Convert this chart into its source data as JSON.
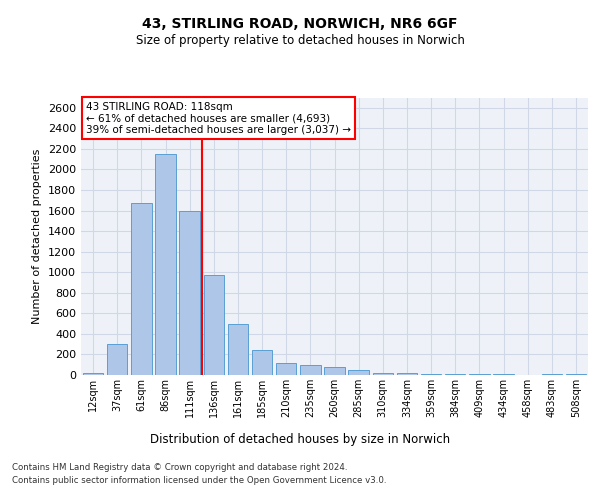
{
  "title_line1": "43, STIRLING ROAD, NORWICH, NR6 6GF",
  "title_line2": "Size of property relative to detached houses in Norwich",
  "xlabel": "Distribution of detached houses by size in Norwich",
  "ylabel": "Number of detached properties",
  "categories": [
    "12sqm",
    "37sqm",
    "61sqm",
    "86sqm",
    "111sqm",
    "136sqm",
    "161sqm",
    "185sqm",
    "210sqm",
    "235sqm",
    "260sqm",
    "285sqm",
    "310sqm",
    "334sqm",
    "359sqm",
    "384sqm",
    "409sqm",
    "434sqm",
    "458sqm",
    "483sqm",
    "508sqm"
  ],
  "values": [
    20,
    300,
    1670,
    2150,
    1600,
    970,
    500,
    245,
    120,
    100,
    80,
    45,
    20,
    15,
    8,
    5,
    12,
    5,
    3,
    8,
    5
  ],
  "bar_color": "#aec6e8",
  "bar_edge_color": "#5a9fd4",
  "grid_color": "#d0d8e8",
  "background_color": "#eef2f8",
  "vline_color": "red",
  "annotation_box_text": "43 STIRLING ROAD: 118sqm\n← 61% of detached houses are smaller (4,693)\n39% of semi-detached houses are larger (3,037) →",
  "annotation_box_color": "red",
  "ylim": [
    0,
    2700
  ],
  "yticks": [
    0,
    200,
    400,
    600,
    800,
    1000,
    1200,
    1400,
    1600,
    1800,
    2000,
    2200,
    2400,
    2600
  ],
  "footer_line1": "Contains HM Land Registry data © Crown copyright and database right 2024.",
  "footer_line2": "Contains public sector information licensed under the Open Government Licence v3.0.",
  "property_bin_index": 4
}
